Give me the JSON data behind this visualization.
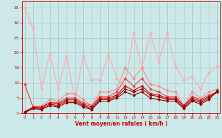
{
  "background_color": "#cce8e8",
  "grid_color": "#aacccc",
  "xlabel": "Vent moyen/en rafales ( km/h )",
  "xlabel_color": "#cc0000",
  "tick_color": "#cc0000",
  "ylim": [
    0,
    37
  ],
  "yticks": [
    0,
    5,
    10,
    15,
    20,
    25,
    30,
    35
  ],
  "xlim": [
    -0.3,
    23.3
  ],
  "xticks": [
    0,
    1,
    2,
    3,
    4,
    5,
    6,
    7,
    8,
    9,
    10,
    11,
    12,
    13,
    14,
    15,
    16,
    17,
    18,
    19,
    20,
    21,
    22,
    23
  ],
  "series": [
    {
      "color": "#ffaaaa",
      "lw": 0.8,
      "marker": "D",
      "ms": 1.5,
      "y": [
        35,
        28,
        8,
        19.5,
        8,
        19,
        4.5,
        19,
        11,
        11,
        19.5,
        11.5,
        9,
        26.5,
        15,
        26.5,
        17,
        26.5,
        15.5,
        11,
        12,
        8,
        13.5,
        15.5
      ]
    },
    {
      "color": "#ff8888",
      "lw": 0.8,
      "marker": "D",
      "ms": 1.5,
      "y": [
        9.5,
        2.0,
        2.5,
        4.5,
        4,
        6.5,
        6.5,
        4.5,
        2.5,
        7,
        7,
        8,
        15,
        11.5,
        15,
        9.5,
        9,
        7.5,
        7,
        2.5,
        7,
        5,
        7,
        8
      ]
    },
    {
      "color": "#ee4444",
      "lw": 0.8,
      "marker": "D",
      "ms": 1.5,
      "y": [
        9.5,
        2.0,
        2.0,
        3.5,
        3.5,
        5,
        5,
        3.5,
        2.5,
        5.5,
        5.5,
        7,
        11.5,
        9,
        11.5,
        8,
        7,
        5.5,
        5.5,
        2.5,
        5.5,
        4.5,
        6,
        7
      ]
    },
    {
      "color": "#cc0000",
      "lw": 0.8,
      "marker": "D",
      "ms": 1.5,
      "y": [
        0.5,
        2.0,
        2.0,
        3.5,
        3,
        4.5,
        4.5,
        3,
        2,
        5,
        5,
        6,
        9,
        7.5,
        9,
        6.5,
        6,
        5,
        5,
        2.5,
        5,
        4,
        5.5,
        7
      ]
    },
    {
      "color": "#aa0000",
      "lw": 0.8,
      "marker": "D",
      "ms": 1.5,
      "y": [
        0.3,
        1.8,
        1.5,
        3.0,
        2.5,
        4.0,
        4.0,
        2.5,
        1.5,
        4.5,
        4.5,
        5.5,
        8.0,
        7.0,
        8.0,
        6.0,
        5.5,
        4.5,
        4.5,
        2.0,
        4.5,
        3.5,
        5.0,
        7.0
      ]
    },
    {
      "color": "#880000",
      "lw": 0.8,
      "marker": "D",
      "ms": 1.5,
      "y": [
        0.2,
        1.5,
        1.2,
        2.5,
        2.0,
        3.5,
        3.5,
        2.0,
        1.2,
        4.0,
        4.0,
        5.0,
        7.0,
        6.0,
        7.0,
        5.0,
        4.5,
        4.0,
        4.0,
        1.5,
        4.0,
        3.0,
        4.5,
        7.5
      ]
    }
  ]
}
